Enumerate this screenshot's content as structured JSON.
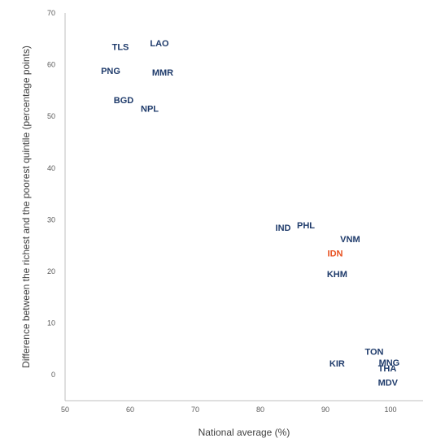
{
  "chart_data": {
    "type": "scatter",
    "xlabel": "National average (%)",
    "ylabel": "Difference between the richest and the poorest quintile (percentage points)",
    "xlim": [
      50,
      105
    ],
    "ylim": [
      -5,
      70
    ],
    "x_ticks": [
      50,
      60,
      70,
      80,
      90,
      100
    ],
    "y_ticks": [
      0,
      10,
      20,
      30,
      40,
      50,
      60,
      70
    ],
    "grid": false,
    "marker_style": "text labels only",
    "default_color": "#1F3B6B",
    "highlight_color": "#E8501F",
    "points": [
      {
        "label": "TLS",
        "x": 58.5,
        "y": 63.5
      },
      {
        "label": "LAO",
        "x": 64.5,
        "y": 64.2
      },
      {
        "label": "PNG",
        "x": 57.0,
        "y": 58.8
      },
      {
        "label": "MMR",
        "x": 65.0,
        "y": 58.5
      },
      {
        "label": "BGD",
        "x": 59.0,
        "y": 53.2
      },
      {
        "label": "NPL",
        "x": 63.0,
        "y": 51.5
      },
      {
        "label": "IND",
        "x": 83.5,
        "y": 28.5
      },
      {
        "label": "PHL",
        "x": 87.0,
        "y": 29.0
      },
      {
        "label": "VNM",
        "x": 93.8,
        "y": 26.3
      },
      {
        "label": "IDN",
        "x": 91.5,
        "y": 23.5,
        "highlight": true
      },
      {
        "label": "KHM",
        "x": 91.8,
        "y": 19.5
      },
      {
        "label": "TON",
        "x": 97.5,
        "y": 4.5
      },
      {
        "label": "KIR",
        "x": 91.8,
        "y": 2.2
      },
      {
        "label": "MNG",
        "x": 99.8,
        "y": 2.4
      },
      {
        "label": "THA",
        "x": 99.5,
        "y": 1.3
      },
      {
        "label": "MDV",
        "x": 99.6,
        "y": -1.5
      }
    ]
  }
}
